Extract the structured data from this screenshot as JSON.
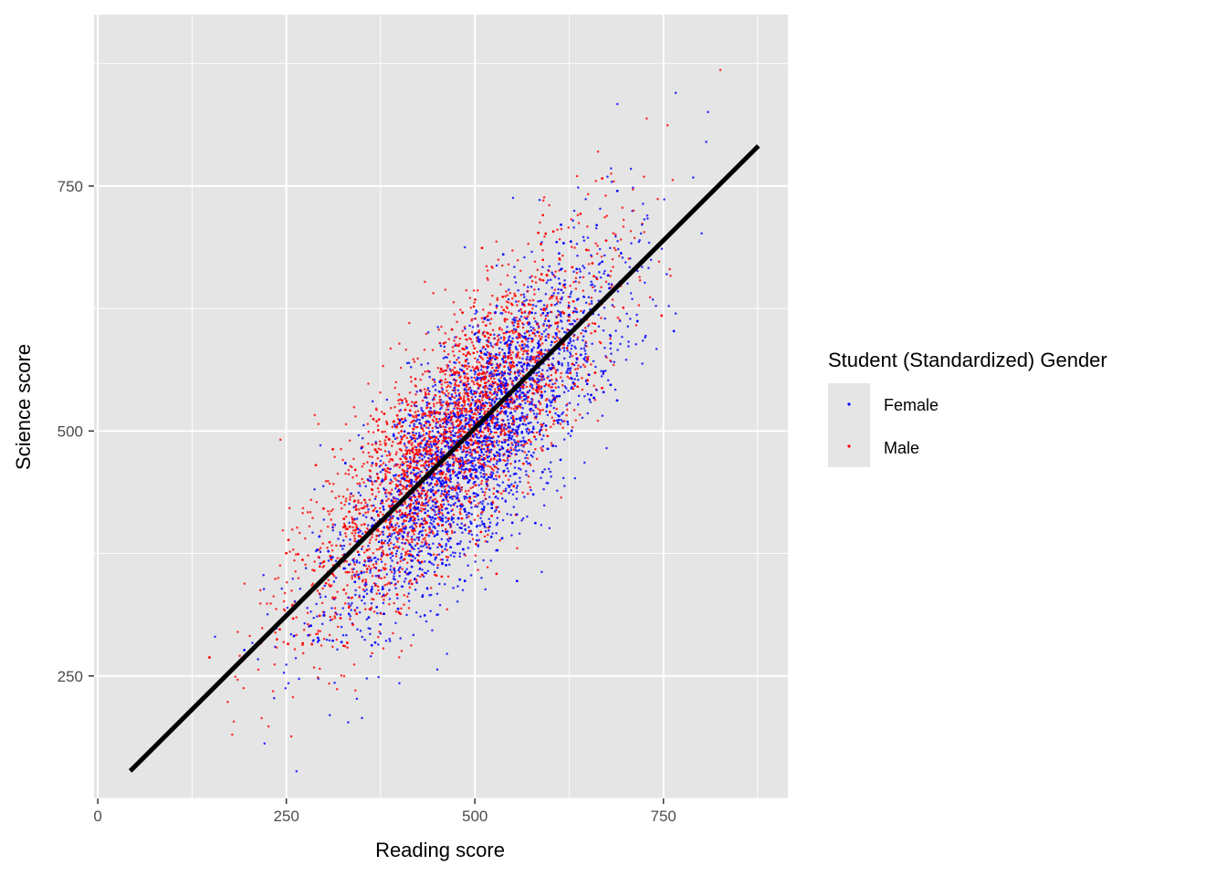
{
  "chart_data": {
    "type": "scatter",
    "title": "",
    "xlabel": "Reading score",
    "ylabel": "Science score",
    "xlim": [
      -5,
      915
    ],
    "ylim": [
      125,
      925
    ],
    "x_ticks": [
      0,
      250,
      500,
      750
    ],
    "y_ticks": [
      250,
      500,
      750
    ],
    "x_tick_labels": [
      "0",
      "250",
      "500",
      "750"
    ],
    "y_tick_labels": [
      "250",
      "500",
      "750"
    ],
    "grid": true,
    "legend": {
      "title": "Student (Standardized) Gender",
      "position": "right",
      "entries": [
        "Female",
        "Male"
      ]
    },
    "series": [
      {
        "name": "Female",
        "color": "#0000ff",
        "distribution": {
          "n": 4200,
          "x_mean": 500,
          "x_sd": 95,
          "y_mean": 490,
          "y_sd": 95,
          "slope": 0.78,
          "resid_sd": 58
        }
      },
      {
        "name": "Male",
        "color": "#ff0000",
        "distribution": {
          "n": 4200,
          "x_mean": 470,
          "x_sd": 100,
          "y_mean": 495,
          "y_sd": 95,
          "slope": 0.78,
          "resid_sd": 58
        }
      }
    ],
    "regression_line": {
      "x": [
        43,
        876
      ],
      "y": [
        153,
        791
      ],
      "color": "#000000"
    }
  }
}
